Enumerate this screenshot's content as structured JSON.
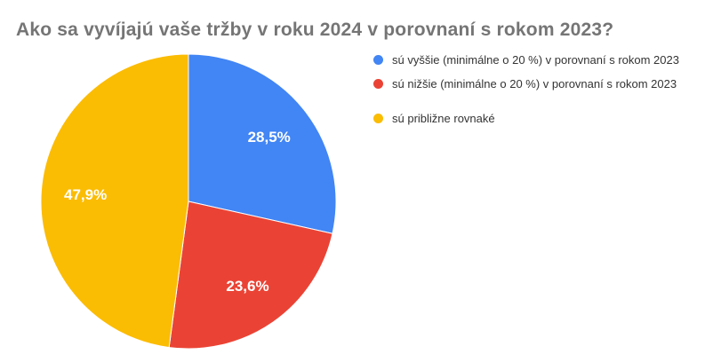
{
  "title": {
    "text": "Ako sa vyvíjajú vaše tržby v roku 2024 v porovnaní s rokom 2023?",
    "color": "#757575"
  },
  "legend": {
    "position": "right",
    "text_color": "#333333",
    "items": [
      {
        "label": "sú vyššie (minimálne o 20 %) v porovnaní s rokom 2023",
        "color": "#4285f4"
      },
      {
        "label": "sú nižšie (minimálne o 20 %) v porovnaní s rokom 2023",
        "color": "#ea4335"
      },
      {
        "label": "sú približne rovnaké",
        "color": "#fbbc04"
      }
    ]
  },
  "chart_data": {
    "type": "pie",
    "title": "Ako sa vyvíjajú vaše tržby v roku 2024 v porovnaní s rokom 2023?",
    "categories": [
      "sú vyššie (minimálne o 20 %) v porovnaní s rokom 2023",
      "sú nižšie (minimálne o 20 %) v porovnaní s rokom 2023",
      "sú približne rovnaké"
    ],
    "values": [
      28.5,
      23.6,
      47.9
    ],
    "value_labels": [
      "28,5%",
      "23,6%",
      "47,9%"
    ],
    "colors": [
      "#4285f4",
      "#ea4335",
      "#fbbc04"
    ],
    "slice_label_color": "#ffffff",
    "slice_border_color": "#ffffff",
    "start_angle_deg": 0,
    "direction": "clockwise",
    "legend_position": "right",
    "background": "#ffffff"
  }
}
